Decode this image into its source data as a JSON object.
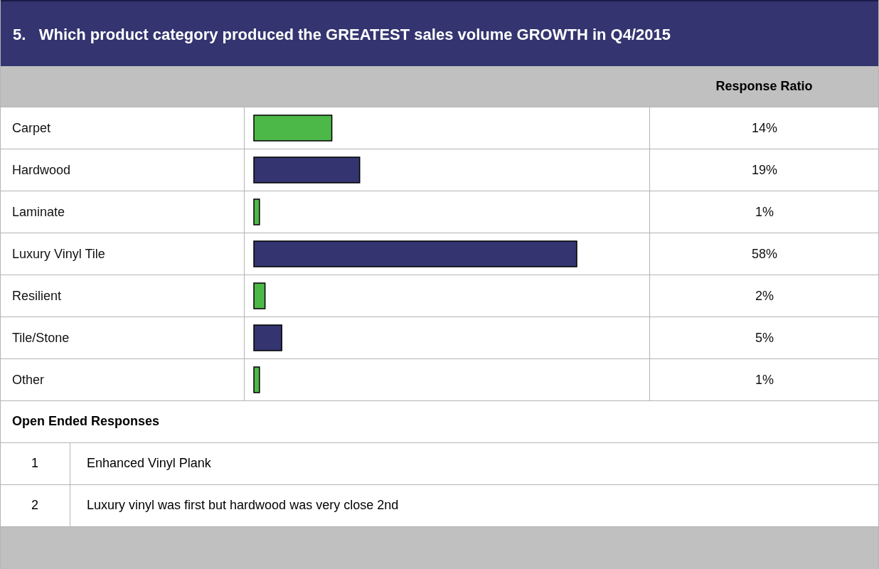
{
  "chart_data": {
    "type": "bar",
    "orientation": "horizontal",
    "title": "5.   Which product category produced the GREATEST sales volume GROWTH in Q4/2015",
    "categories": [
      "Carpet",
      "Hardwood",
      "Laminate",
      "Luxury Vinyl Tile",
      "Resilient",
      "Tile/Stone",
      "Other"
    ],
    "values": [
      14,
      19,
      1,
      58,
      2,
      5,
      1
    ],
    "colors": [
      "#4cb848",
      "#343470",
      "#4cb848",
      "#343470",
      "#4cb848",
      "#343470",
      "#4cb848"
    ],
    "value_labels": [
      "14%",
      "19%",
      "1%",
      "58%",
      "2%",
      "5%",
      "1%"
    ],
    "annotations": [
      "Response Ratio",
      "Open Ended Responses",
      "1",
      "Enhanced Vinyl Plank",
      "2",
      "Luxury vinyl was first but hardwood was very close 2nd"
    ]
  }
}
